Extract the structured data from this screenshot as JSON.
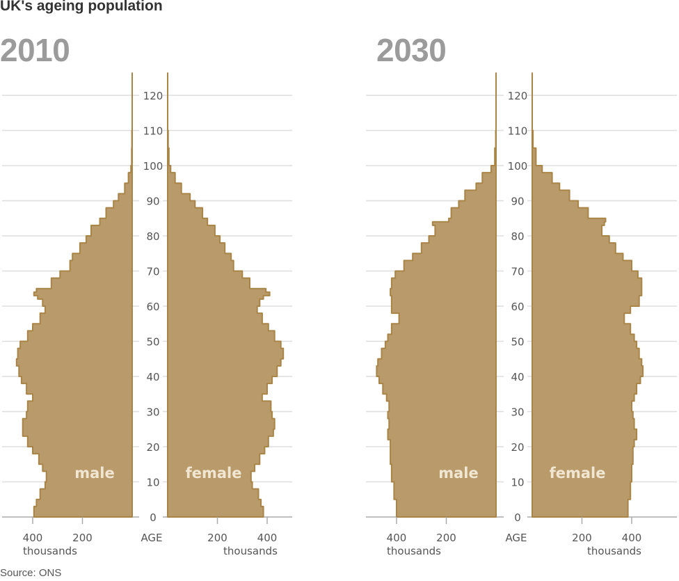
{
  "title": "UK's ageing population",
  "source": "Source: ONS",
  "colors": {
    "fill": "#b99a6b",
    "stroke": "#a98447",
    "grid": "#dedede",
    "axis": "#aaaaaa",
    "year_label": "#9b9b9b"
  },
  "axis": {
    "age_label": "AGE",
    "unit_label": "thousands",
    "age_ticks": [
      0,
      10,
      20,
      30,
      40,
      50,
      60,
      70,
      80,
      90,
      100,
      110,
      120
    ],
    "pop_ticks": [
      400,
      200
    ]
  },
  "panels": [
    {
      "year": "2010",
      "male_label": "male",
      "female_label": "female"
    },
    {
      "year": "2030",
      "male_label": "male",
      "female_label": "female"
    }
  ],
  "chart_data": [
    {
      "type": "bar",
      "orientation": "horizontal population pyramid",
      "title": "2010",
      "xlabel": "thousands",
      "ylabel": "AGE",
      "ylim": [
        0,
        125
      ],
      "xlim": [
        0,
        450
      ],
      "grid": true,
      "ages": [
        0,
        3,
        5,
        8,
        10,
        13,
        15,
        18,
        20,
        23,
        25,
        28,
        30,
        33,
        35,
        38,
        40,
        43,
        45,
        48,
        50,
        53,
        55,
        58,
        60,
        62,
        63,
        64,
        65,
        68,
        70,
        73,
        75,
        78,
        80,
        83,
        85,
        88,
        90,
        92,
        95,
        98,
        100,
        105,
        110,
        126
      ],
      "series": [
        {
          "name": "male",
          "values": [
            395,
            385,
            370,
            350,
            345,
            360,
            375,
            400,
            420,
            440,
            440,
            425,
            420,
            400,
            425,
            445,
            455,
            465,
            460,
            450,
            420,
            400,
            370,
            350,
            360,
            380,
            395,
            385,
            325,
            290,
            250,
            240,
            210,
            185,
            165,
            130,
            105,
            75,
            55,
            30,
            15,
            5,
            2,
            1,
            0,
            0
          ]
        },
        {
          "name": "female",
          "values": [
            385,
            375,
            365,
            340,
            335,
            350,
            370,
            390,
            405,
            425,
            430,
            420,
            415,
            380,
            400,
            420,
            440,
            455,
            465,
            455,
            430,
            405,
            380,
            360,
            370,
            385,
            410,
            395,
            330,
            300,
            265,
            255,
            230,
            210,
            190,
            160,
            140,
            110,
            90,
            55,
            30,
            12,
            5,
            2,
            0,
            0
          ]
        }
      ]
    },
    {
      "type": "bar",
      "orientation": "horizontal population pyramid",
      "title": "2030",
      "xlabel": "thousands",
      "ylabel": "AGE",
      "ylim": [
        0,
        125
      ],
      "xlim": [
        0,
        480
      ],
      "grid": true,
      "ages": [
        0,
        5,
        10,
        15,
        20,
        22,
        25,
        28,
        30,
        33,
        35,
        38,
        40,
        43,
        45,
        48,
        50,
        52,
        55,
        58,
        60,
        63,
        65,
        68,
        70,
        73,
        75,
        78,
        80,
        82,
        83,
        84,
        85,
        88,
        90,
        93,
        95,
        98,
        100,
        105,
        110,
        126
      ],
      "series": [
        {
          "name": "male",
          "values": [
            400,
            410,
            420,
            425,
            425,
            435,
            430,
            435,
            430,
            440,
            455,
            470,
            480,
            475,
            460,
            445,
            435,
            420,
            390,
            420,
            420,
            425,
            420,
            405,
            370,
            335,
            300,
            270,
            245,
            245,
            255,
            190,
            180,
            150,
            125,
            80,
            55,
            20,
            5,
            1,
            0,
            0
          ]
        },
        {
          "name": "female",
          "values": [
            385,
            395,
            400,
            405,
            410,
            420,
            410,
            405,
            400,
            410,
            420,
            435,
            445,
            440,
            430,
            420,
            410,
            395,
            370,
            395,
            430,
            440,
            440,
            425,
            400,
            365,
            335,
            310,
            280,
            280,
            290,
            295,
            225,
            185,
            150,
            110,
            80,
            40,
            15,
            3,
            0,
            0
          ]
        }
      ]
    }
  ]
}
